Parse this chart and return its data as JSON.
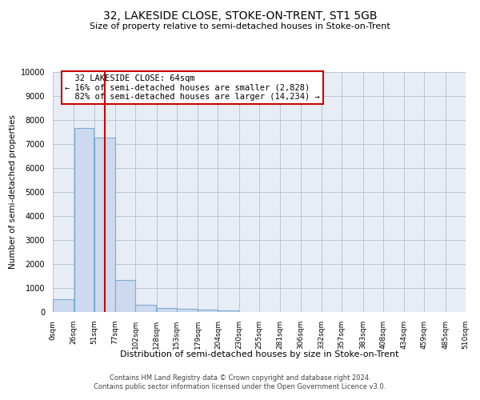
{
  "title": "32, LAKESIDE CLOSE, STOKE-ON-TRENT, ST1 5GB",
  "subtitle": "Size of property relative to semi-detached houses in Stoke-on-Trent",
  "xlabel": "Distribution of semi-detached houses by size in Stoke-on-Trent",
  "ylabel": "Number of semi-detached properties",
  "footer_line1": "Contains HM Land Registry data © Crown copyright and database right 2024.",
  "footer_line2": "Contains public sector information licensed under the Open Government Licence v3.0.",
  "bar_edges": [
    0,
    26,
    51,
    77,
    102,
    128,
    153,
    179,
    204,
    230,
    255,
    281,
    306,
    332,
    357,
    383,
    408,
    434,
    459,
    485,
    510
  ],
  "bar_heights": [
    550,
    7650,
    7250,
    1350,
    300,
    160,
    130,
    100,
    70,
    0,
    0,
    0,
    0,
    0,
    0,
    0,
    0,
    0,
    0,
    0
  ],
  "property_size": 64,
  "property_label": "32 LAKESIDE CLOSE: 64sqm",
  "smaller_pct": "16%",
  "smaller_count": "2,828",
  "larger_pct": "82%",
  "larger_count": "14,234",
  "bar_facecolor": "#ccd9ee",
  "bar_edgecolor": "#7aadd4",
  "vline_color": "#cc0000",
  "annotation_box_color": "#cc0000",
  "background_color": "#ffffff",
  "plot_bg_color": "#e8edf5",
  "grid_color": "#b8c4d8",
  "ylim": [
    0,
    10000
  ],
  "yticks": [
    0,
    1000,
    2000,
    3000,
    4000,
    5000,
    6000,
    7000,
    8000,
    9000,
    10000
  ],
  "xtick_labels": [
    "0sqm",
    "26sqm",
    "51sqm",
    "77sqm",
    "102sqm",
    "128sqm",
    "153sqm",
    "179sqm",
    "204sqm",
    "230sqm",
    "255sqm",
    "281sqm",
    "306sqm",
    "332sqm",
    "357sqm",
    "383sqm",
    "408sqm",
    "434sqm",
    "459sqm",
    "485sqm",
    "510sqm"
  ]
}
